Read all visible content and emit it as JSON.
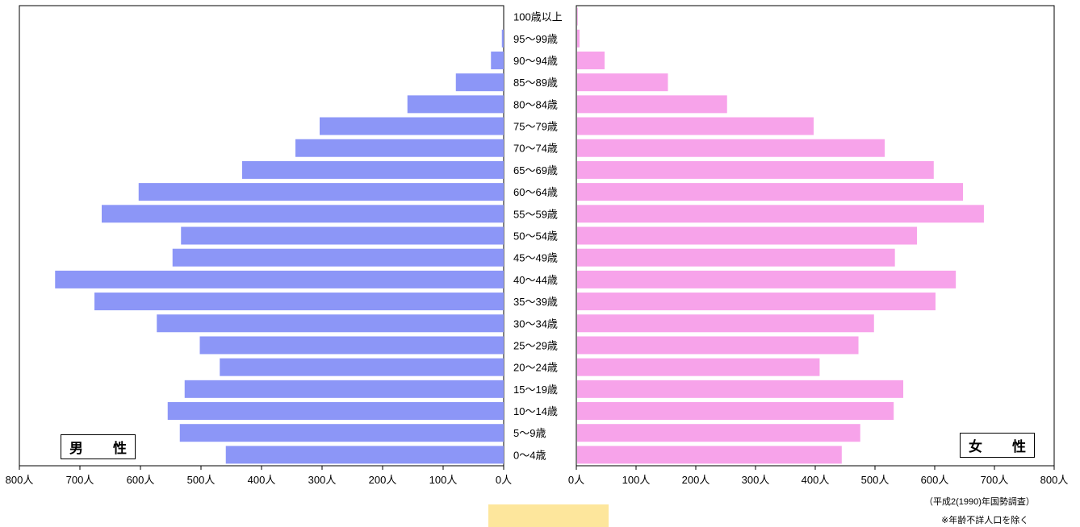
{
  "chart_data": {
    "type": "bar",
    "orientation": "horizontal",
    "layout": "population-pyramid",
    "categories": [
      "0～4歳",
      "5～9歳",
      "10～14歳",
      "15～19歳",
      "20～24歳",
      "25～29歳",
      "30～34歳",
      "35～39歳",
      "40～44歳",
      "45～49歳",
      "50～54歳",
      "55～59歳",
      "60～64歳",
      "65～69歳",
      "70～74歳",
      "75～79歳",
      "80～84歳",
      "85～89歳",
      "90～94歳",
      "95～99歳",
      "100歳以上"
    ],
    "series": [
      {
        "name": "男　性",
        "color": "#8c96f7",
        "side": "left",
        "values": [
          459,
          535,
          555,
          527,
          469,
          502,
          573,
          676,
          741,
          547,
          533,
          664,
          603,
          432,
          344,
          304,
          159,
          79,
          21,
          3,
          0
        ]
      },
      {
        "name": "女　性",
        "color": "#f7a3ea",
        "side": "right",
        "values": [
          443,
          474,
          530,
          546,
          406,
          471,
          497,
          600,
          634,
          532,
          569,
          681,
          646,
          597,
          515,
          396,
          251,
          152,
          46,
          4,
          1
        ]
      }
    ],
    "xlim": [
      0,
      800
    ],
    "xticks": [
      0,
      100,
      200,
      300,
      400,
      500,
      600,
      700,
      800
    ],
    "tick_unit": "人",
    "gridlines": false
  },
  "notes": {
    "source": "（平成2(1990)年国勢調査）",
    "exclusion": "※年齢不詳人口を除く"
  },
  "highlight_color": "#fde69c"
}
